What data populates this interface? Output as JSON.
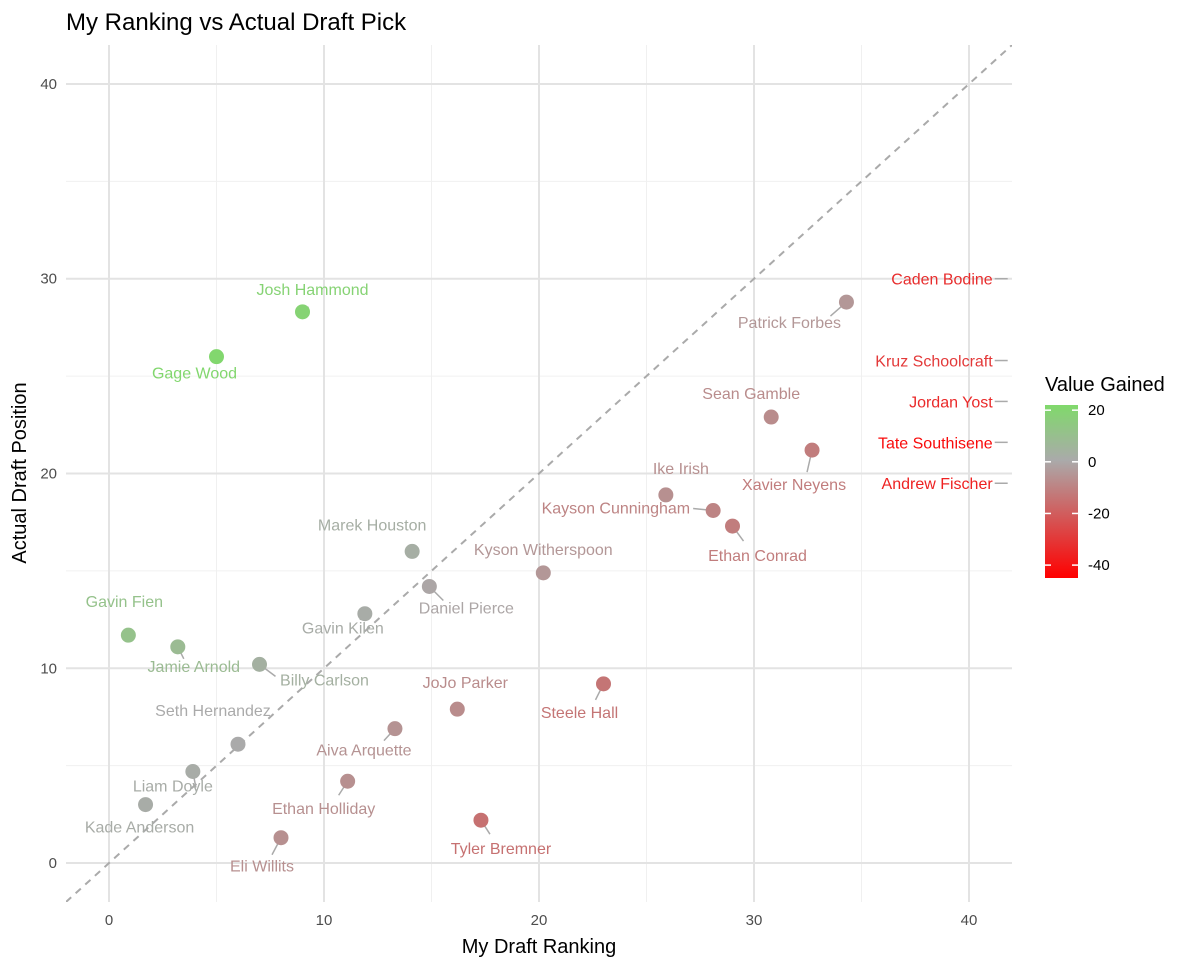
{
  "chart_data": {
    "type": "scatter",
    "title": "My Ranking vs Actual Draft Pick",
    "xlabel": "My Draft Ranking",
    "ylabel": "Actual Draft Position",
    "xlim": [
      -2,
      42
    ],
    "ylim": [
      -2,
      42
    ],
    "x_ticks": [
      0,
      10,
      20,
      30,
      40
    ],
    "y_ticks": [
      0,
      10,
      20,
      30,
      40
    ],
    "grid": true,
    "reference_line": {
      "slope": 1,
      "intercept": 0,
      "style": "dashed",
      "color": "#aaaaaa"
    },
    "legend": {
      "title": "Value Gained",
      "placement": "right",
      "min": -45,
      "max": 22,
      "ticks": [
        20,
        0,
        -20,
        -40
      ],
      "colors": {
        "high": "#80d96b",
        "mid": "#aaaaaa",
        "low": "#ff0000"
      }
    },
    "points": [
      {
        "name": "Josh Hammond",
        "x": 9,
        "y": 28.3,
        "value": 19
      },
      {
        "name": "Gage Wood",
        "x": 5,
        "y": 26,
        "value": 21
      },
      {
        "name": "Gavin Fien",
        "x": 0.9,
        "y": 11.7,
        "value": 11
      },
      {
        "name": "Jamie Arnold",
        "x": 3.2,
        "y": 11.1,
        "value": 8
      },
      {
        "name": "Billy Carlson",
        "x": 7,
        "y": 10.2,
        "value": 3
      },
      {
        "name": "Gavin Kilen",
        "x": 11.9,
        "y": 12.8,
        "value": 1
      },
      {
        "name": "Marek Houston",
        "x": 14.1,
        "y": 16,
        "value": 2
      },
      {
        "name": "Daniel Pierce",
        "x": 14.9,
        "y": 14.2,
        "value": -1
      },
      {
        "name": "Seth Hernandez",
        "x": 6,
        "y": 6.1,
        "value": 0
      },
      {
        "name": "Liam Doyle",
        "x": 3.9,
        "y": 4.7,
        "value": 1
      },
      {
        "name": "Kade Anderson",
        "x": 1.7,
        "y": 3,
        "value": 1
      },
      {
        "name": "Eli Willits",
        "x": 8,
        "y": 1.3,
        "value": -7
      },
      {
        "name": "Ethan Holliday",
        "x": 11.1,
        "y": 4.2,
        "value": -7
      },
      {
        "name": "Aiva Arquette",
        "x": 13.3,
        "y": 6.9,
        "value": -6
      },
      {
        "name": "JoJo Parker",
        "x": 16.2,
        "y": 7.9,
        "value": -8
      },
      {
        "name": "Tyler Bremner",
        "x": 17.3,
        "y": 2.2,
        "value": -15
      },
      {
        "name": "Steele Hall",
        "x": 23,
        "y": 9.2,
        "value": -14
      },
      {
        "name": "Kyson Witherspoon",
        "x": 20.2,
        "y": 14.9,
        "value": -5
      },
      {
        "name": "Ike Irish",
        "x": 25.9,
        "y": 18.9,
        "value": -7
      },
      {
        "name": "Kayson Cunningham",
        "x": 28.1,
        "y": 18.1,
        "value": -10
      },
      {
        "name": "Ethan Conrad",
        "x": 29,
        "y": 17.3,
        "value": -12
      },
      {
        "name": "Sean Gamble",
        "x": 30.8,
        "y": 22.9,
        "value": -8
      },
      {
        "name": "Xavier Neyens",
        "x": 32.7,
        "y": 21.2,
        "value": -12
      },
      {
        "name": "Patrick Forbes",
        "x": 34.3,
        "y": 28.8,
        "value": -5
      },
      {
        "name": "Caden Bodine",
        "x": 41.8,
        "y": 30,
        "value": -33
      },
      {
        "name": "Kruz Schoolcraft",
        "x": 41.8,
        "y": 25.8,
        "value": -30
      },
      {
        "name": "Jordan Yost",
        "x": 41.8,
        "y": 23.7,
        "value": -34
      },
      {
        "name": "Tate Southisene",
        "x": 41.8,
        "y": 21.6,
        "value": -42
      },
      {
        "name": "Andrew Fischer",
        "x": 41.8,
        "y": 19.5,
        "value": -36
      }
    ]
  }
}
